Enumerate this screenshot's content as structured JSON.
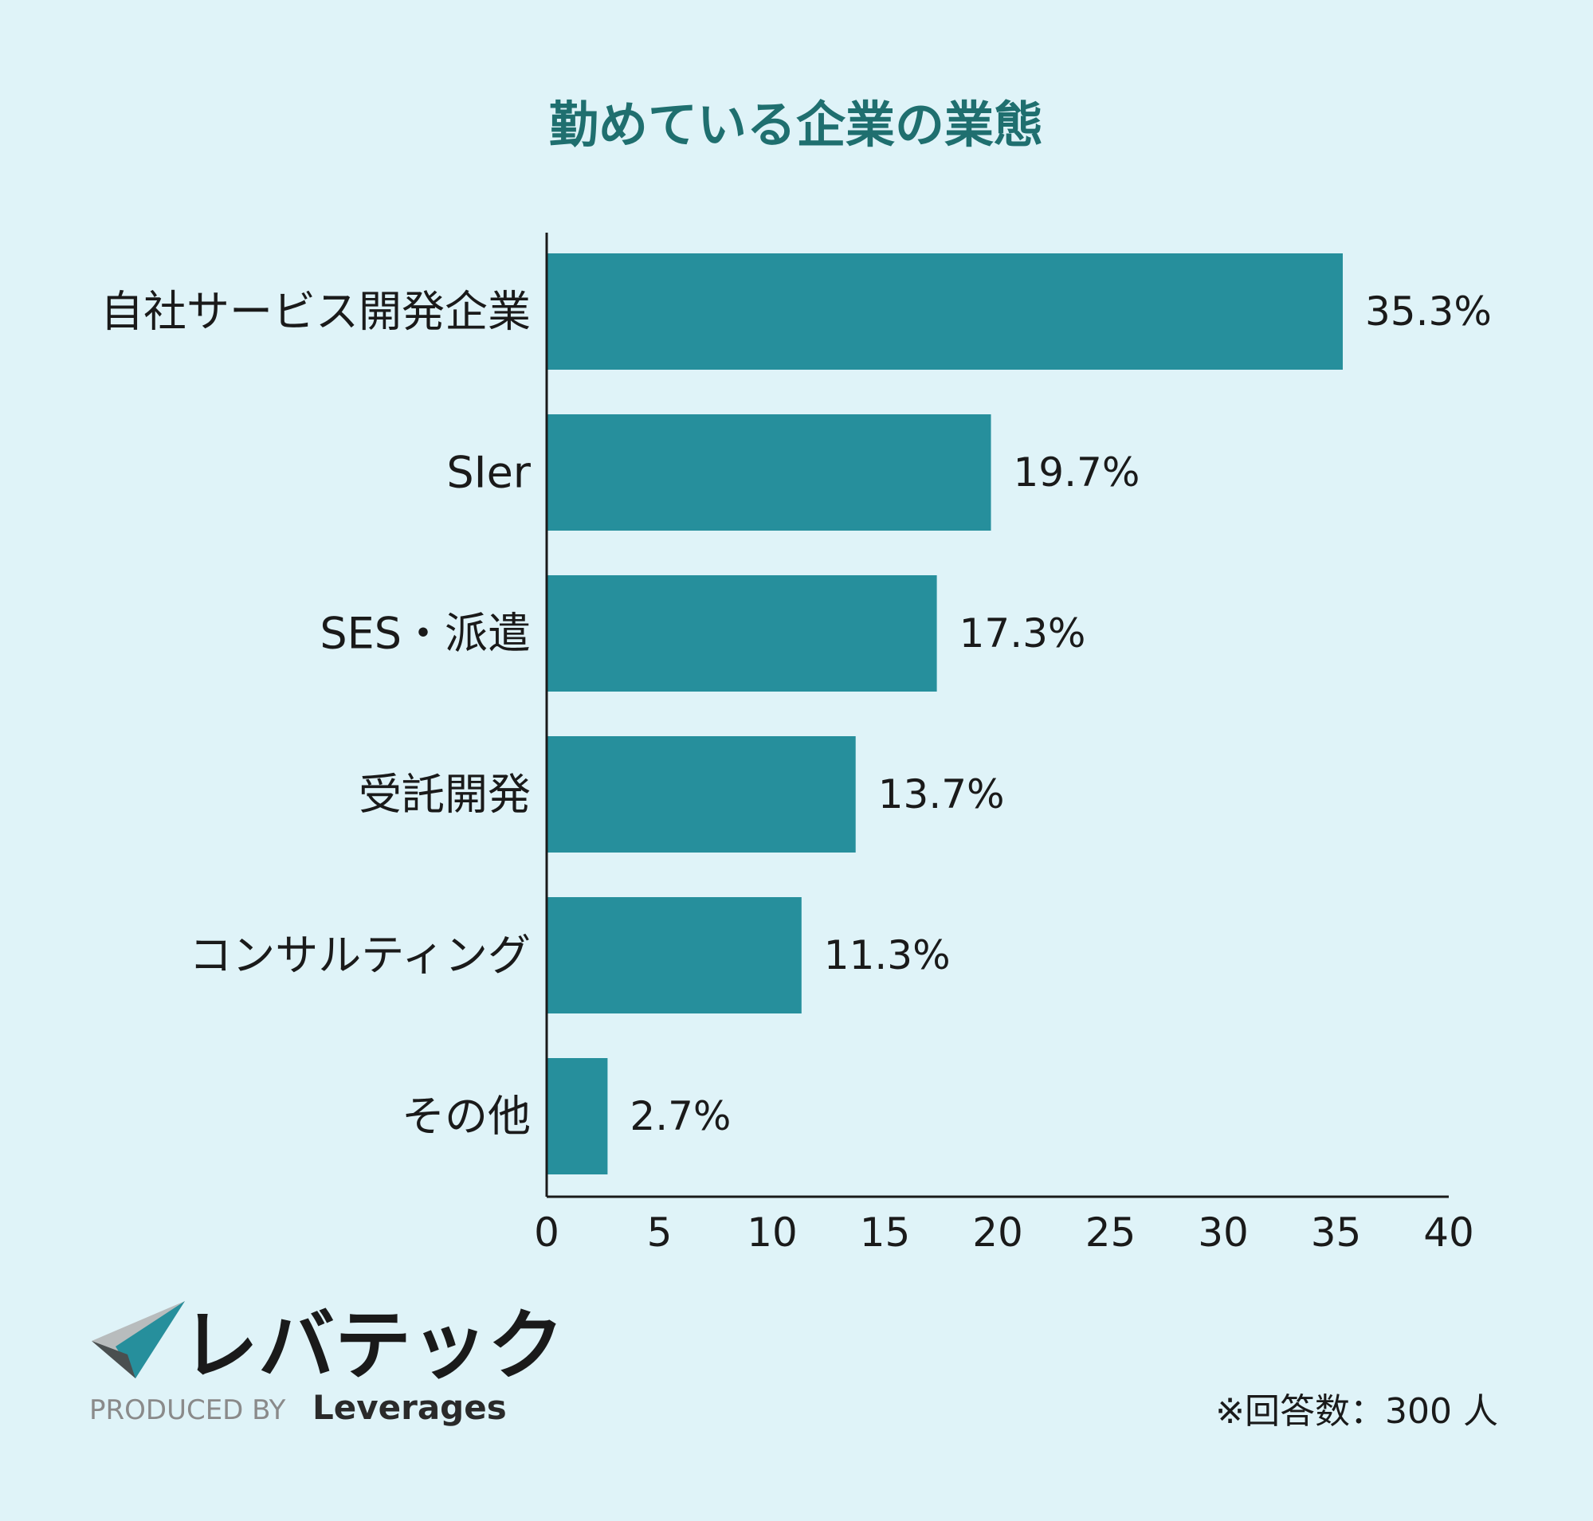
{
  "chart_data": {
    "type": "bar",
    "orientation": "horizontal",
    "title": "勤めている企業の業態",
    "categories": [
      "自社サービス開発企業",
      "SIer",
      "SES・派遣",
      "受託開発",
      "コンサルティング",
      "その他"
    ],
    "values": [
      35.3,
      19.7,
      17.3,
      13.7,
      11.3,
      2.7
    ],
    "value_labels": [
      "35.3%",
      "19.7%",
      "17.3%",
      "13.7%",
      "11.3%",
      "2.7%"
    ],
    "xlim": [
      0,
      40
    ],
    "xticks": [
      0,
      5,
      10,
      15,
      20,
      25,
      30,
      35,
      40
    ],
    "grid": false,
    "bar_color": "#268f9c",
    "title_color": "#1f6f6f",
    "background_color": "#dff3f8"
  },
  "branding": {
    "logo_text": "レバテック",
    "produced_by": "PRODUCED BY",
    "company": "Leverages"
  },
  "note": "※回答数：300 人"
}
